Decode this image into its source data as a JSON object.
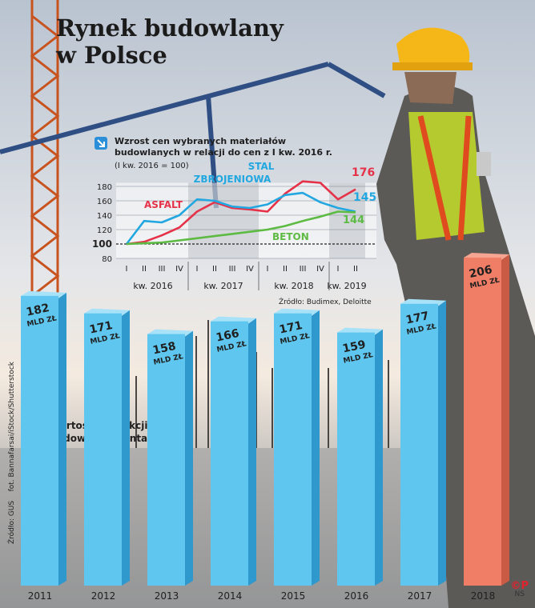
{
  "title": {
    "line1": "Rynek budowlany",
    "line2": "w Polsce"
  },
  "colors": {
    "asfalt": "#e53249",
    "stal": "#22a7e0",
    "beton": "#5dbb44",
    "bar": "#5fc7ef",
    "bar_highlight": "#f07e66",
    "arrow": "#2a8fd8"
  },
  "chart_data": [
    {
      "type": "line",
      "title": "Wzrost cen wybranych materiałów budowlanych w relacji do cen z I kw. 2016 r.",
      "subtitle": "(I kw. 2016 = 100)",
      "source": "Źródło: Budimex, Deloitte",
      "ylim": [
        80,
        180
      ],
      "yticks": [
        80,
        100,
        120,
        140,
        160,
        180
      ],
      "quarter_labels": [
        "I",
        "II",
        "III",
        "IV",
        "I",
        "II",
        "III",
        "IV",
        "I",
        "II",
        "III",
        "IV",
        "I",
        "II"
      ],
      "year_labels": [
        "kw. 2016",
        "kw. 2017",
        "kw. 2018",
        "kw. 2019"
      ],
      "grid": true,
      "series": [
        {
          "name": "ASFALT",
          "values": [
            100,
            103,
            112,
            123,
            145,
            158,
            150,
            148,
            145,
            170,
            187,
            185,
            162,
            176
          ],
          "end_label": "176"
        },
        {
          "name": "STAL ZBROJENIOWA",
          "values": [
            100,
            132,
            130,
            140,
            162,
            160,
            152,
            150,
            155,
            168,
            171,
            158,
            150,
            145
          ],
          "end_label": "145"
        },
        {
          "name": "BETON",
          "values": [
            100,
            101,
            102,
            105,
            108,
            111,
            114,
            117,
            120,
            125,
            132,
            138,
            145,
            144
          ],
          "end_label": "144"
        }
      ]
    },
    {
      "type": "bar",
      "title": "Wartość produkcji budowlano-montażowej",
      "source": "Źródło: GUS",
      "photo_credit": "fot. Bannafarsai/iStock/Shutterstock",
      "unit": "MLD ZŁ",
      "categories": [
        "2011",
        "2012",
        "2013",
        "2014",
        "2015",
        "2016",
        "2017",
        "2018"
      ],
      "values": [
        182,
        171,
        158,
        166,
        171,
        159,
        177,
        206
      ],
      "highlight": "2018"
    }
  ],
  "legend_words": {
    "stal_line1": "STAL",
    "stal_line2": "ZBROJENIOWA"
  },
  "copyright": {
    "symbol": "©P",
    "initials": "NS"
  }
}
